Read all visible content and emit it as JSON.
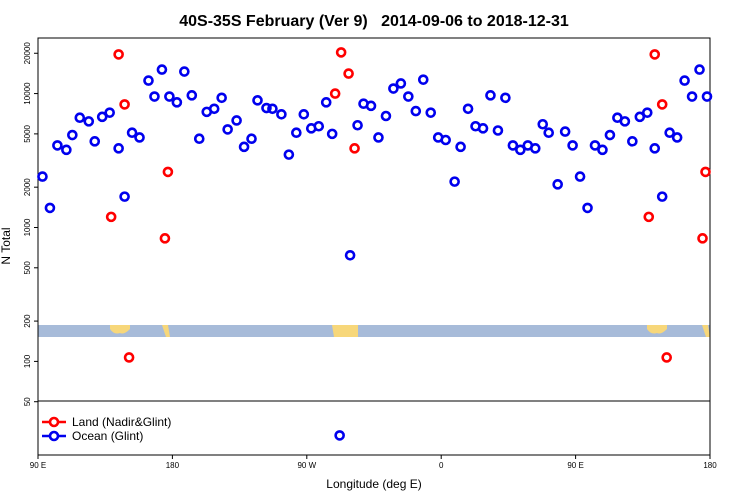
{
  "chart_data": {
    "type": "scatter",
    "title": "40S-35S February (Ver 9)   2014-09-06 to 2018-12-31",
    "x_label": "Longitude (deg E)",
    "y_label": "N Total",
    "xlim": [
      90,
      540
    ],
    "xticks": [
      {
        "value": 90,
        "label": "90 E"
      },
      180,
      {
        "value": 270,
        "label": "90 W"
      },
      {
        "value": 360,
        "label": "0"
      },
      {
        "value": 450,
        "label": "90 E"
      },
      {
        "value": 540,
        "label": "180"
      }
    ],
    "ylim": [
      20,
      26000
    ],
    "yticks": [
      50,
      100,
      200,
      500,
      1000,
      2000,
      5000,
      10000,
      20000
    ],
    "log_y": true,
    "legend": "bottom-left",
    "series": [
      {
        "name": "Land (Nadir&Glint)",
        "color": "#ff0000",
        "x": [
          139,
          144,
          148,
          151,
          175,
          177,
          289,
          293,
          298,
          302,
          499,
          503,
          508,
          511,
          535,
          537
        ],
        "values": [
          1200,
          19600,
          8300,
          107,
          830,
          2600,
          10000,
          20300,
          14100,
          3900,
          1200,
          19600,
          8300,
          107,
          830,
          2600
        ]
      },
      {
        "name": "Ocean (Glint)",
        "color": "#0000ee",
        "x": [
          93,
          98,
          103,
          109,
          113,
          118,
          124,
          128,
          133,
          138,
          144,
          148,
          153,
          158,
          164,
          168,
          173,
          178,
          183,
          188,
          193,
          198,
          203,
          208,
          213,
          217,
          223,
          228,
          233,
          237,
          243,
          247,
          253,
          258,
          263,
          268,
          273,
          278,
          283,
          287,
          292,
          299,
          304,
          308,
          313,
          318,
          323,
          328,
          333,
          338,
          343,
          348,
          353,
          358,
          363,
          369,
          373,
          378,
          383,
          388,
          393,
          398,
          403,
          408,
          413,
          418,
          423,
          428,
          432,
          438,
          443,
          448,
          453,
          458,
          463,
          468,
          473,
          478,
          483,
          488,
          493,
          498,
          503,
          508,
          513,
          518,
          523,
          528,
          533,
          538
        ],
        "values": [
          2400,
          1400,
          4100,
          3800,
          4900,
          6600,
          6200,
          4400,
          6700,
          7200,
          3900,
          1700,
          5100,
          4700,
          12500,
          9500,
          15100,
          9500,
          8600,
          14600,
          9700,
          4600,
          7300,
          7700,
          9300,
          5400,
          6300,
          4000,
          4600,
          8900,
          7800,
          7700,
          7000,
          3500,
          5100,
          7000,
          5500,
          5700,
          8600,
          5000,
          28,
          620,
          5800,
          8400,
          8100,
          4700,
          6800,
          10900,
          11900,
          9500,
          7400,
          12700,
          7200,
          4700,
          4500,
          2200,
          4000,
          7700,
          5700,
          5500,
          9700,
          5300,
          9300,
          4100,
          3800,
          4100,
          3900,
          5900,
          5100,
          2100,
          5200,
          4100,
          2400,
          1400,
          4100,
          3800,
          4900,
          6600,
          6200,
          4400,
          6700,
          7200,
          3900,
          1700,
          5100,
          4700,
          12500,
          9500,
          15100,
          9500
        ]
      }
    ]
  }
}
